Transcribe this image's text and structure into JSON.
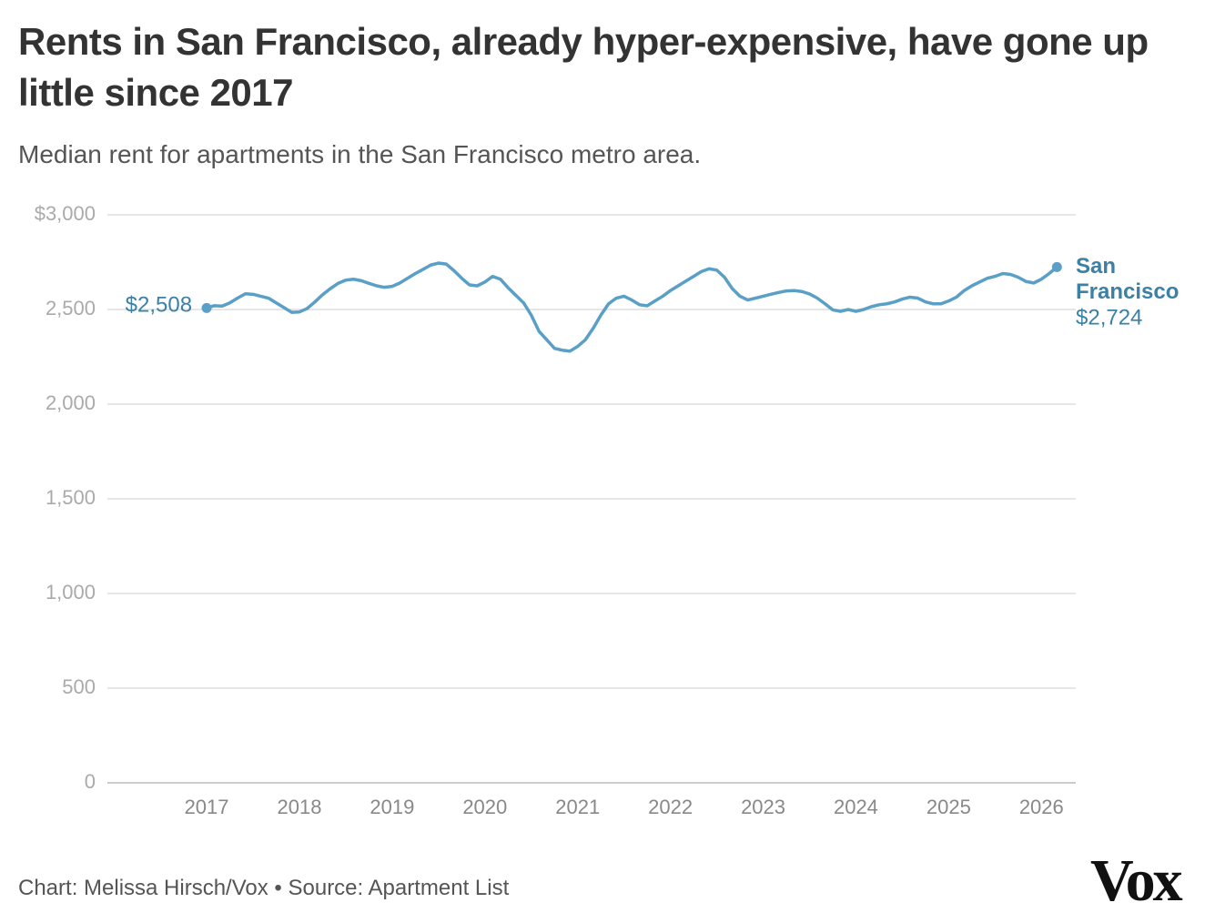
{
  "chart_data": {
    "type": "line",
    "title": "Rents in San Francisco, already hyper-expensive, have gone up little since 2017",
    "subtitle": "Median rent for apartments in the San Francisco metro area.",
    "credit": "Chart: Melissa Hirsch/Vox • Source: Apartment List",
    "logo": "Vox",
    "x": [
      2017,
      2017.083,
      2017.167,
      2017.25,
      2017.333,
      2017.417,
      2017.5,
      2017.583,
      2017.667,
      2017.75,
      2017.833,
      2017.917,
      2018,
      2018.083,
      2018.167,
      2018.25,
      2018.333,
      2018.417,
      2018.5,
      2018.583,
      2018.667,
      2018.75,
      2018.833,
      2018.917,
      2019,
      2019.083,
      2019.167,
      2019.25,
      2019.333,
      2019.417,
      2019.5,
      2019.583,
      2019.667,
      2019.75,
      2019.833,
      2019.917,
      2020,
      2020.083,
      2020.167,
      2020.25,
      2020.333,
      2020.417,
      2020.5,
      2020.583,
      2020.667,
      2020.75,
      2020.833,
      2020.917,
      2021,
      2021.083,
      2021.167,
      2021.25,
      2021.333,
      2021.417,
      2021.5,
      2021.583,
      2021.667,
      2021.75,
      2021.833,
      2021.917,
      2022,
      2022.083,
      2022.167,
      2022.25,
      2022.333,
      2022.417,
      2022.5,
      2022.583,
      2022.667,
      2022.75,
      2022.833,
      2022.917,
      2023,
      2023.083,
      2023.167,
      2023.25,
      2023.333,
      2023.417,
      2023.5,
      2023.583,
      2023.667,
      2023.75,
      2023.833,
      2023.917,
      2024,
      2024.083,
      2024.167,
      2024.25,
      2024.333,
      2024.417,
      2024.5,
      2024.583,
      2024.667,
      2024.75,
      2024.833,
      2024.917,
      2025,
      2025.083,
      2025.167,
      2025.25,
      2025.333,
      2025.417,
      2025.5,
      2025.583,
      2025.667,
      2025.75,
      2025.833,
      2025.917,
      2026,
      2026.083,
      2026.167
    ],
    "series": [
      {
        "name": "San Francisco",
        "color": "#5a9fc6",
        "values": [
          2508,
          2520,
          2518,
          2535,
          2560,
          2583,
          2580,
          2570,
          2560,
          2535,
          2510,
          2485,
          2487,
          2505,
          2540,
          2578,
          2610,
          2638,
          2655,
          2660,
          2652,
          2638,
          2625,
          2617,
          2622,
          2640,
          2665,
          2690,
          2712,
          2735,
          2745,
          2740,
          2705,
          2665,
          2630,
          2625,
          2645,
          2675,
          2660,
          2615,
          2575,
          2535,
          2470,
          2385,
          2340,
          2295,
          2285,
          2280,
          2305,
          2340,
          2400,
          2470,
          2530,
          2560,
          2570,
          2550,
          2525,
          2520,
          2545,
          2570,
          2600,
          2625,
          2650,
          2675,
          2700,
          2715,
          2708,
          2670,
          2610,
          2570,
          2550,
          2560,
          2570,
          2580,
          2590,
          2598,
          2600,
          2595,
          2582,
          2560,
          2530,
          2498,
          2490,
          2500,
          2490,
          2500,
          2515,
          2525,
          2530,
          2540,
          2555,
          2565,
          2560,
          2540,
          2530,
          2530,
          2545,
          2565,
          2600,
          2625,
          2645,
          2665,
          2675,
          2690,
          2685,
          2670,
          2648,
          2640,
          2660,
          2690,
          2724
        ],
        "value_labels": [
          "$2,508",
          null,
          null,
          null,
          null,
          null,
          null,
          null,
          null,
          null,
          null,
          null,
          null,
          null,
          null,
          null,
          null,
          null,
          null,
          null,
          null,
          null,
          null,
          null,
          null,
          null,
          null,
          null,
          null,
          null,
          null,
          null,
          null,
          null,
          null,
          null,
          null,
          null,
          null,
          null,
          null,
          null,
          null,
          null,
          null,
          null,
          null,
          null,
          null,
          null,
          null,
          null,
          null,
          null,
          null,
          null,
          null,
          null,
          null,
          null,
          null,
          null,
          null,
          null,
          null,
          null,
          null,
          null,
          null,
          null,
          null,
          null,
          null,
          null,
          null,
          null,
          null,
          null,
          null,
          null,
          null,
          null,
          null,
          null,
          null,
          null,
          null,
          null,
          null,
          null,
          null,
          null,
          null,
          null,
          null,
          null,
          null,
          null,
          null,
          null,
          null,
          null,
          null,
          null,
          null,
          null,
          null,
          null,
          null,
          null,
          "$2,724"
        ]
      }
    ],
    "xlim": [
      2015.93,
      2026.37
    ],
    "xticks": [
      2017,
      2018,
      2019,
      2020,
      2021,
      2022,
      2023,
      2024,
      2025,
      2026
    ],
    "ylim": [
      0,
      3000
    ],
    "yticks": [
      0,
      500,
      {
        "value": 1000,
        "label": "1,000"
      },
      {
        "value": 1500,
        "label": "1,500"
      },
      {
        "value": 2000,
        "label": "2,000"
      },
      {
        "value": 2500,
        "label": "2,500"
      },
      {
        "value": 3000,
        "label": "$3,000"
      }
    ],
    "grid": true
  }
}
